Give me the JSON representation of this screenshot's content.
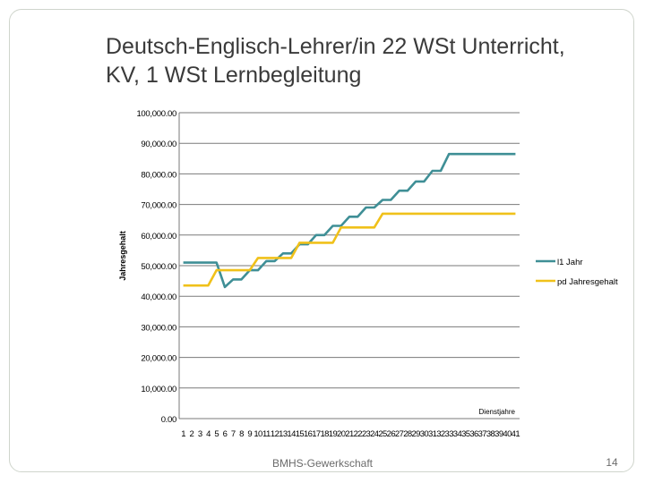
{
  "slide": {
    "title_line1": "Deutsch-Englisch-Lehrer/in 22 WSt Unterricht,",
    "title_line2": "KV, 1 WSt Lernbegleitung",
    "footer": "BMHS-Gewerkschaft",
    "page_number": "14"
  },
  "colors": {
    "series1": "#3f8f96",
    "series2": "#f0c11a",
    "grid": "#7a7a7a"
  },
  "chart_data": {
    "type": "line",
    "title": "",
    "xlabel": "Dienstjahre",
    "ylabel": "Jahresgehalt",
    "ylim": [
      0,
      100000
    ],
    "y_ticks": [
      "0.00",
      "10,000.00",
      "20,000.00",
      "30,000.00",
      "40,000.00",
      "50,000.00",
      "60,000.00",
      "70,000.00",
      "80,000.00",
      "90,000.00",
      "100,000.00"
    ],
    "y_tick_values": [
      0,
      10000,
      20000,
      30000,
      40000,
      50000,
      60000,
      70000,
      80000,
      90000,
      100000
    ],
    "grid": true,
    "legend_position": "right",
    "x": [
      1,
      2,
      3,
      4,
      5,
      6,
      7,
      8,
      9,
      10,
      11,
      12,
      13,
      14,
      15,
      16,
      17,
      18,
      19,
      20,
      21,
      22,
      23,
      24,
      25,
      26,
      27,
      28,
      29,
      30,
      31,
      32,
      33,
      34,
      35,
      36,
      37,
      38,
      39,
      40,
      41
    ],
    "x_tick_labels": [
      "1",
      "2",
      "3",
      "4",
      "5",
      "6",
      "7",
      "8",
      "9",
      "10",
      "11",
      "12",
      "13",
      "14",
      "15",
      "16",
      "17",
      "18",
      "19",
      "20",
      "21",
      "22",
      "23",
      "24",
      "25",
      "26",
      "27",
      "28",
      "29",
      "30",
      "31",
      "32",
      "33",
      "34",
      "35",
      "36",
      "37",
      "38",
      "39",
      "40",
      "41"
    ],
    "series": [
      {
        "name": "l1 Jahr",
        "values": [
          51000,
          51000,
          51000,
          51000,
          51000,
          43000,
          45500,
          45500,
          48500,
          48500,
          51500,
          51500,
          54000,
          54000,
          57000,
          57000,
          60000,
          60000,
          63000,
          63000,
          66000,
          66000,
          69000,
          69000,
          71500,
          71500,
          74500,
          74500,
          77500,
          77500,
          81000,
          81000,
          86500,
          86500,
          86500,
          86500,
          86500,
          86500,
          86500,
          86500,
          86500
        ]
      },
      {
        "name": "pd Jahresgehalt",
        "values": [
          43500,
          43500,
          43500,
          43500,
          48500,
          48500,
          48500,
          48500,
          48500,
          52500,
          52500,
          52500,
          52500,
          52500,
          57500,
          57500,
          57500,
          57500,
          57500,
          62500,
          62500,
          62500,
          62500,
          62500,
          67000,
          67000,
          67000,
          67000,
          67000,
          67000,
          67000,
          67000,
          67000,
          67000,
          67000,
          67000,
          67000,
          67000,
          67000,
          67000,
          67000
        ]
      }
    ]
  }
}
